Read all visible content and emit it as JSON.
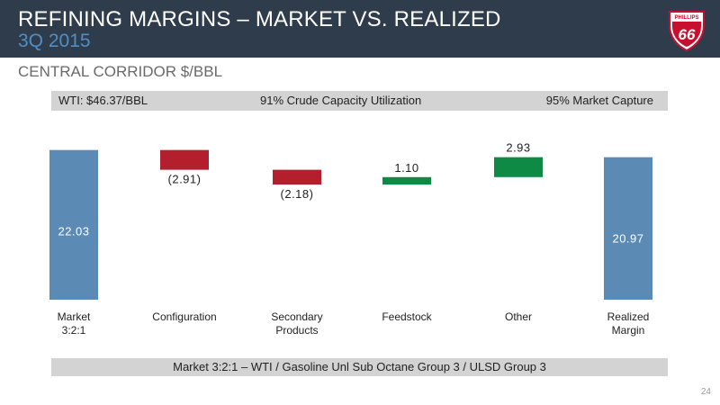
{
  "header": {
    "title": "REFINING MARGINS – MARKET VS. REALIZED",
    "subtitle": "3Q 2015",
    "logo_text_top": "PHILLIPS",
    "logo_text_number": "66"
  },
  "section_title": "CENTRAL CORRIDOR $/BBL",
  "info_bar": {
    "wti": "WTI: $46.37/BBL",
    "utilization": "91% Crude Capacity Utilization",
    "capture": "95% Market Capture"
  },
  "chart_data": {
    "type": "bar",
    "subtype": "waterfall",
    "categories": [
      "Market\n3:2:1",
      "Configuration",
      "Secondary\nProducts",
      "Feedstock",
      "Other",
      "Realized\nMargin"
    ],
    "values": [
      22.03,
      -2.91,
      -2.18,
      1.1,
      2.93,
      20.97
    ],
    "value_labels": [
      "22.03",
      "(2.91)",
      "(2.18)",
      "1.10",
      "2.93",
      "20.97"
    ],
    "bar_kinds": [
      "total",
      "delta",
      "delta",
      "delta",
      "delta",
      "total"
    ],
    "colors": {
      "total": "#5b8ab5",
      "negative": "#b41f2d",
      "positive": "#0f8a45"
    },
    "grid": false,
    "legend": "none"
  },
  "footnote": "Market 3:2:1 – WTI / Gasoline Unl Sub Octane Group 3 / ULSD Group 3",
  "page_number": "24"
}
